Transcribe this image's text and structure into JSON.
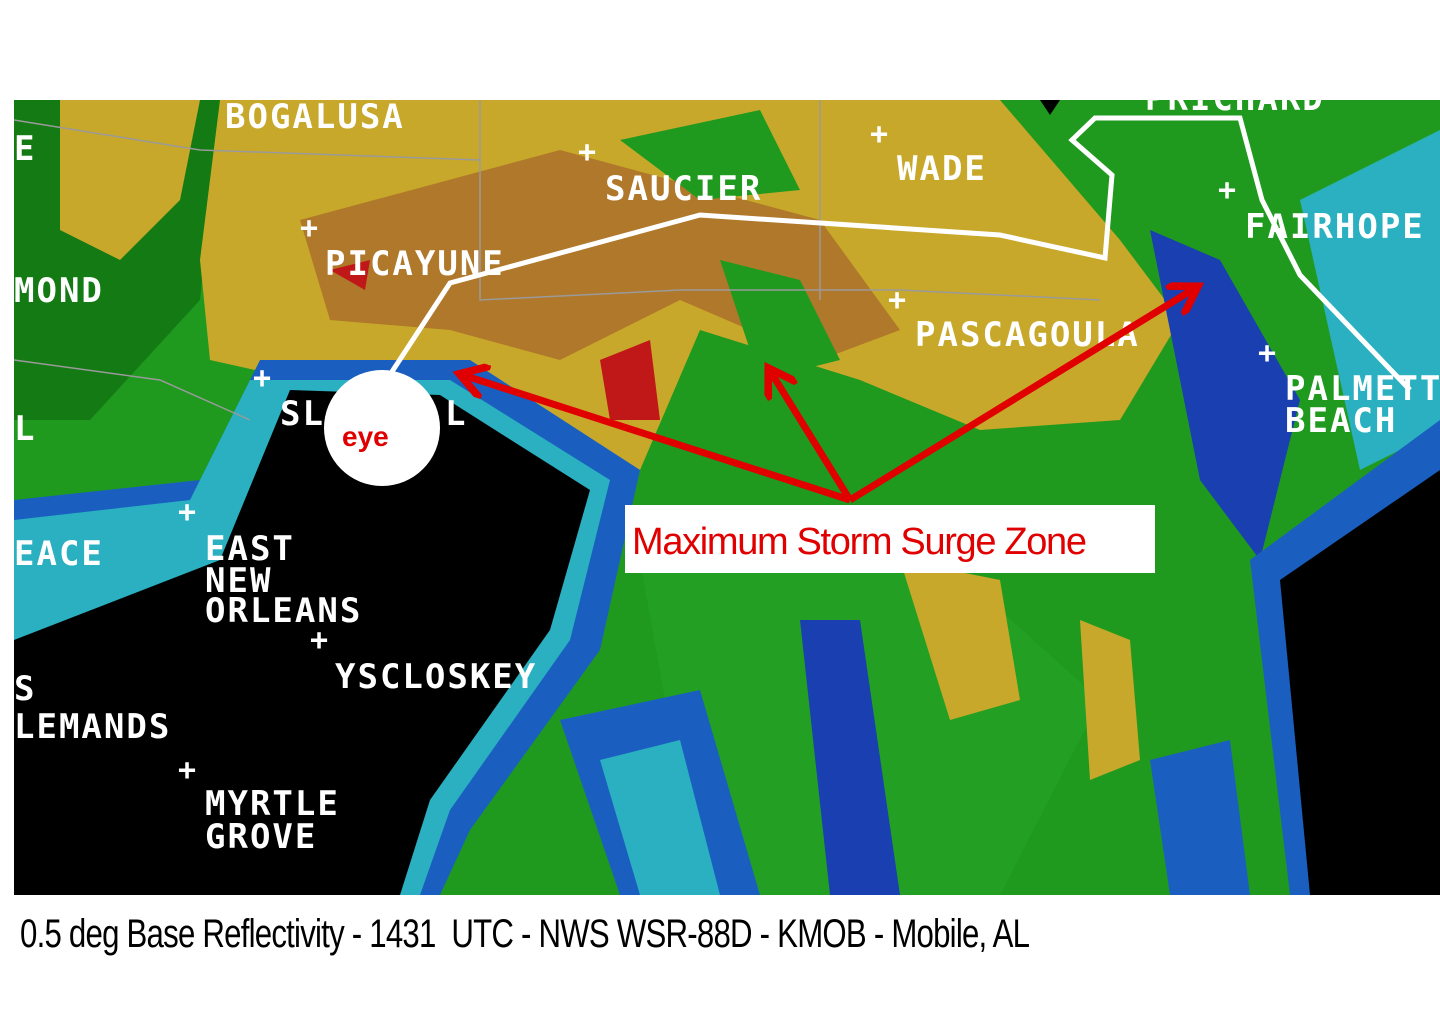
{
  "map": {
    "labels": [
      {
        "text": "BOGALUSA"
      },
      {
        "text": "SAUCIER"
      },
      {
        "text": "WADE"
      },
      {
        "text": "PRICHARD"
      },
      {
        "text": "FAIRHOPE"
      },
      {
        "text": "MOND"
      },
      {
        "text": "PICAYUNE"
      },
      {
        "text": "PASCAGOULA"
      },
      {
        "text": "PALMETTO"
      },
      {
        "text": "BEACH"
      },
      {
        "text": "SL"
      },
      {
        "text": "L"
      },
      {
        "text": "L"
      },
      {
        "text": "EACE"
      },
      {
        "text": "EAST"
      },
      {
        "text": "NEW"
      },
      {
        "text": "ORLEANS"
      },
      {
        "text": "YSCLOSKEY"
      },
      {
        "text": "S"
      },
      {
        "text": "LEMANDS"
      },
      {
        "text": "MYRTLE"
      },
      {
        "text": "GROVE"
      },
      {
        "text": "E"
      }
    ],
    "city_marker_symbol": "+",
    "eye_label": "eye",
    "surge_label": "Maximum Storm Surge Zone",
    "colors": {
      "annotation": "#e00000",
      "track": "#ffffff",
      "reflectivity_low": "#1f9a1f",
      "reflectivity_mid": "#c8a82a",
      "reflectivity_high": "#b0782a",
      "reflectivity_max": "#c01818"
    }
  },
  "caption": "0.5 deg Base Reflectivity - 1431  UTC - NWS WSR-88D - KMOB - Mobile, AL"
}
